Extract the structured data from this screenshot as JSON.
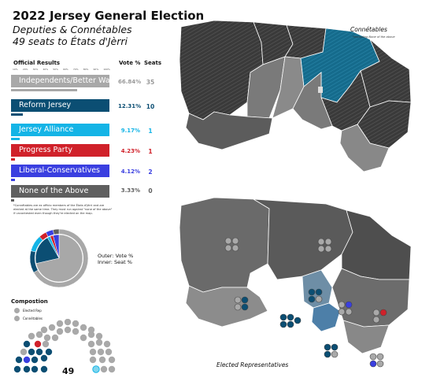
{
  "title": "2022 Jersey General Election",
  "subtitle_line1": "Deputies & Connétables",
  "subtitle_line2": "49 seats to États d'Jèrri",
  "results": {
    "heading": "Official Results",
    "vote_col": "Vote %",
    "seats_col": "Seats",
    "scale_ticks": [
      "10%",
      "20%",
      "30%",
      "40%",
      "50%",
      "60%",
      "70%",
      "80%",
      "90%",
      "100%"
    ],
    "parties": [
      {
        "name": "Independents/Better Way",
        "vote": "66.84%",
        "seats": "35",
        "vote_value": 66.84,
        "color": "#a8a8a8",
        "text_color": "#999999"
      },
      {
        "name": "Reform Jersey",
        "vote": "12.31%",
        "seats": "10",
        "vote_value": 12.31,
        "color": "#0b4e73",
        "text_color": "#0b4e73"
      },
      {
        "name": "Jersey Alliance",
        "vote": "9.17%",
        "seats": "1",
        "vote_value": 9.17,
        "color": "#14b4e6",
        "text_color": "#14b4e6"
      },
      {
        "name": "Progress Party",
        "vote": "4.23%",
        "seats": "1",
        "vote_value": 4.23,
        "color": "#d0212a",
        "text_color": "#d0212a"
      },
      {
        "name": "Liberal-Conservatives",
        "vote": "4.12%",
        "seats": "2",
        "vote_value": 4.12,
        "color": "#3a3fe0",
        "text_color": "#3a3fe0"
      },
      {
        "name": "None of the Above",
        "vote": "3.33%",
        "seats": "0",
        "vote_value": 3.33,
        "color": "#5f5f5f",
        "text_color": "#5f5f5f"
      }
    ]
  },
  "footnote": "*Connétables are ex officio members of the États d'Jèrri and are elected at the same time. They must run against \"none of the above\" if uncontested even though they're elected on the map.",
  "pie": {
    "legend_outer": "Outer: Vote %",
    "legend_inner": "Inner: Seat %",
    "vote_shares": [
      66.84,
      12.31,
      9.17,
      4.23,
      4.12,
      3.33
    ],
    "seat_counts": [
      35,
      10,
      1,
      1,
      2,
      0
    ]
  },
  "composition": {
    "title": "Compostion",
    "key_elected": "Elected Rep",
    "key_connetables": "Connétables",
    "total": "49"
  },
  "maps": {
    "top_label": "Connétables",
    "top_note": "*excluding None of the above",
    "bottom_label": "Elected Representatives"
  }
}
